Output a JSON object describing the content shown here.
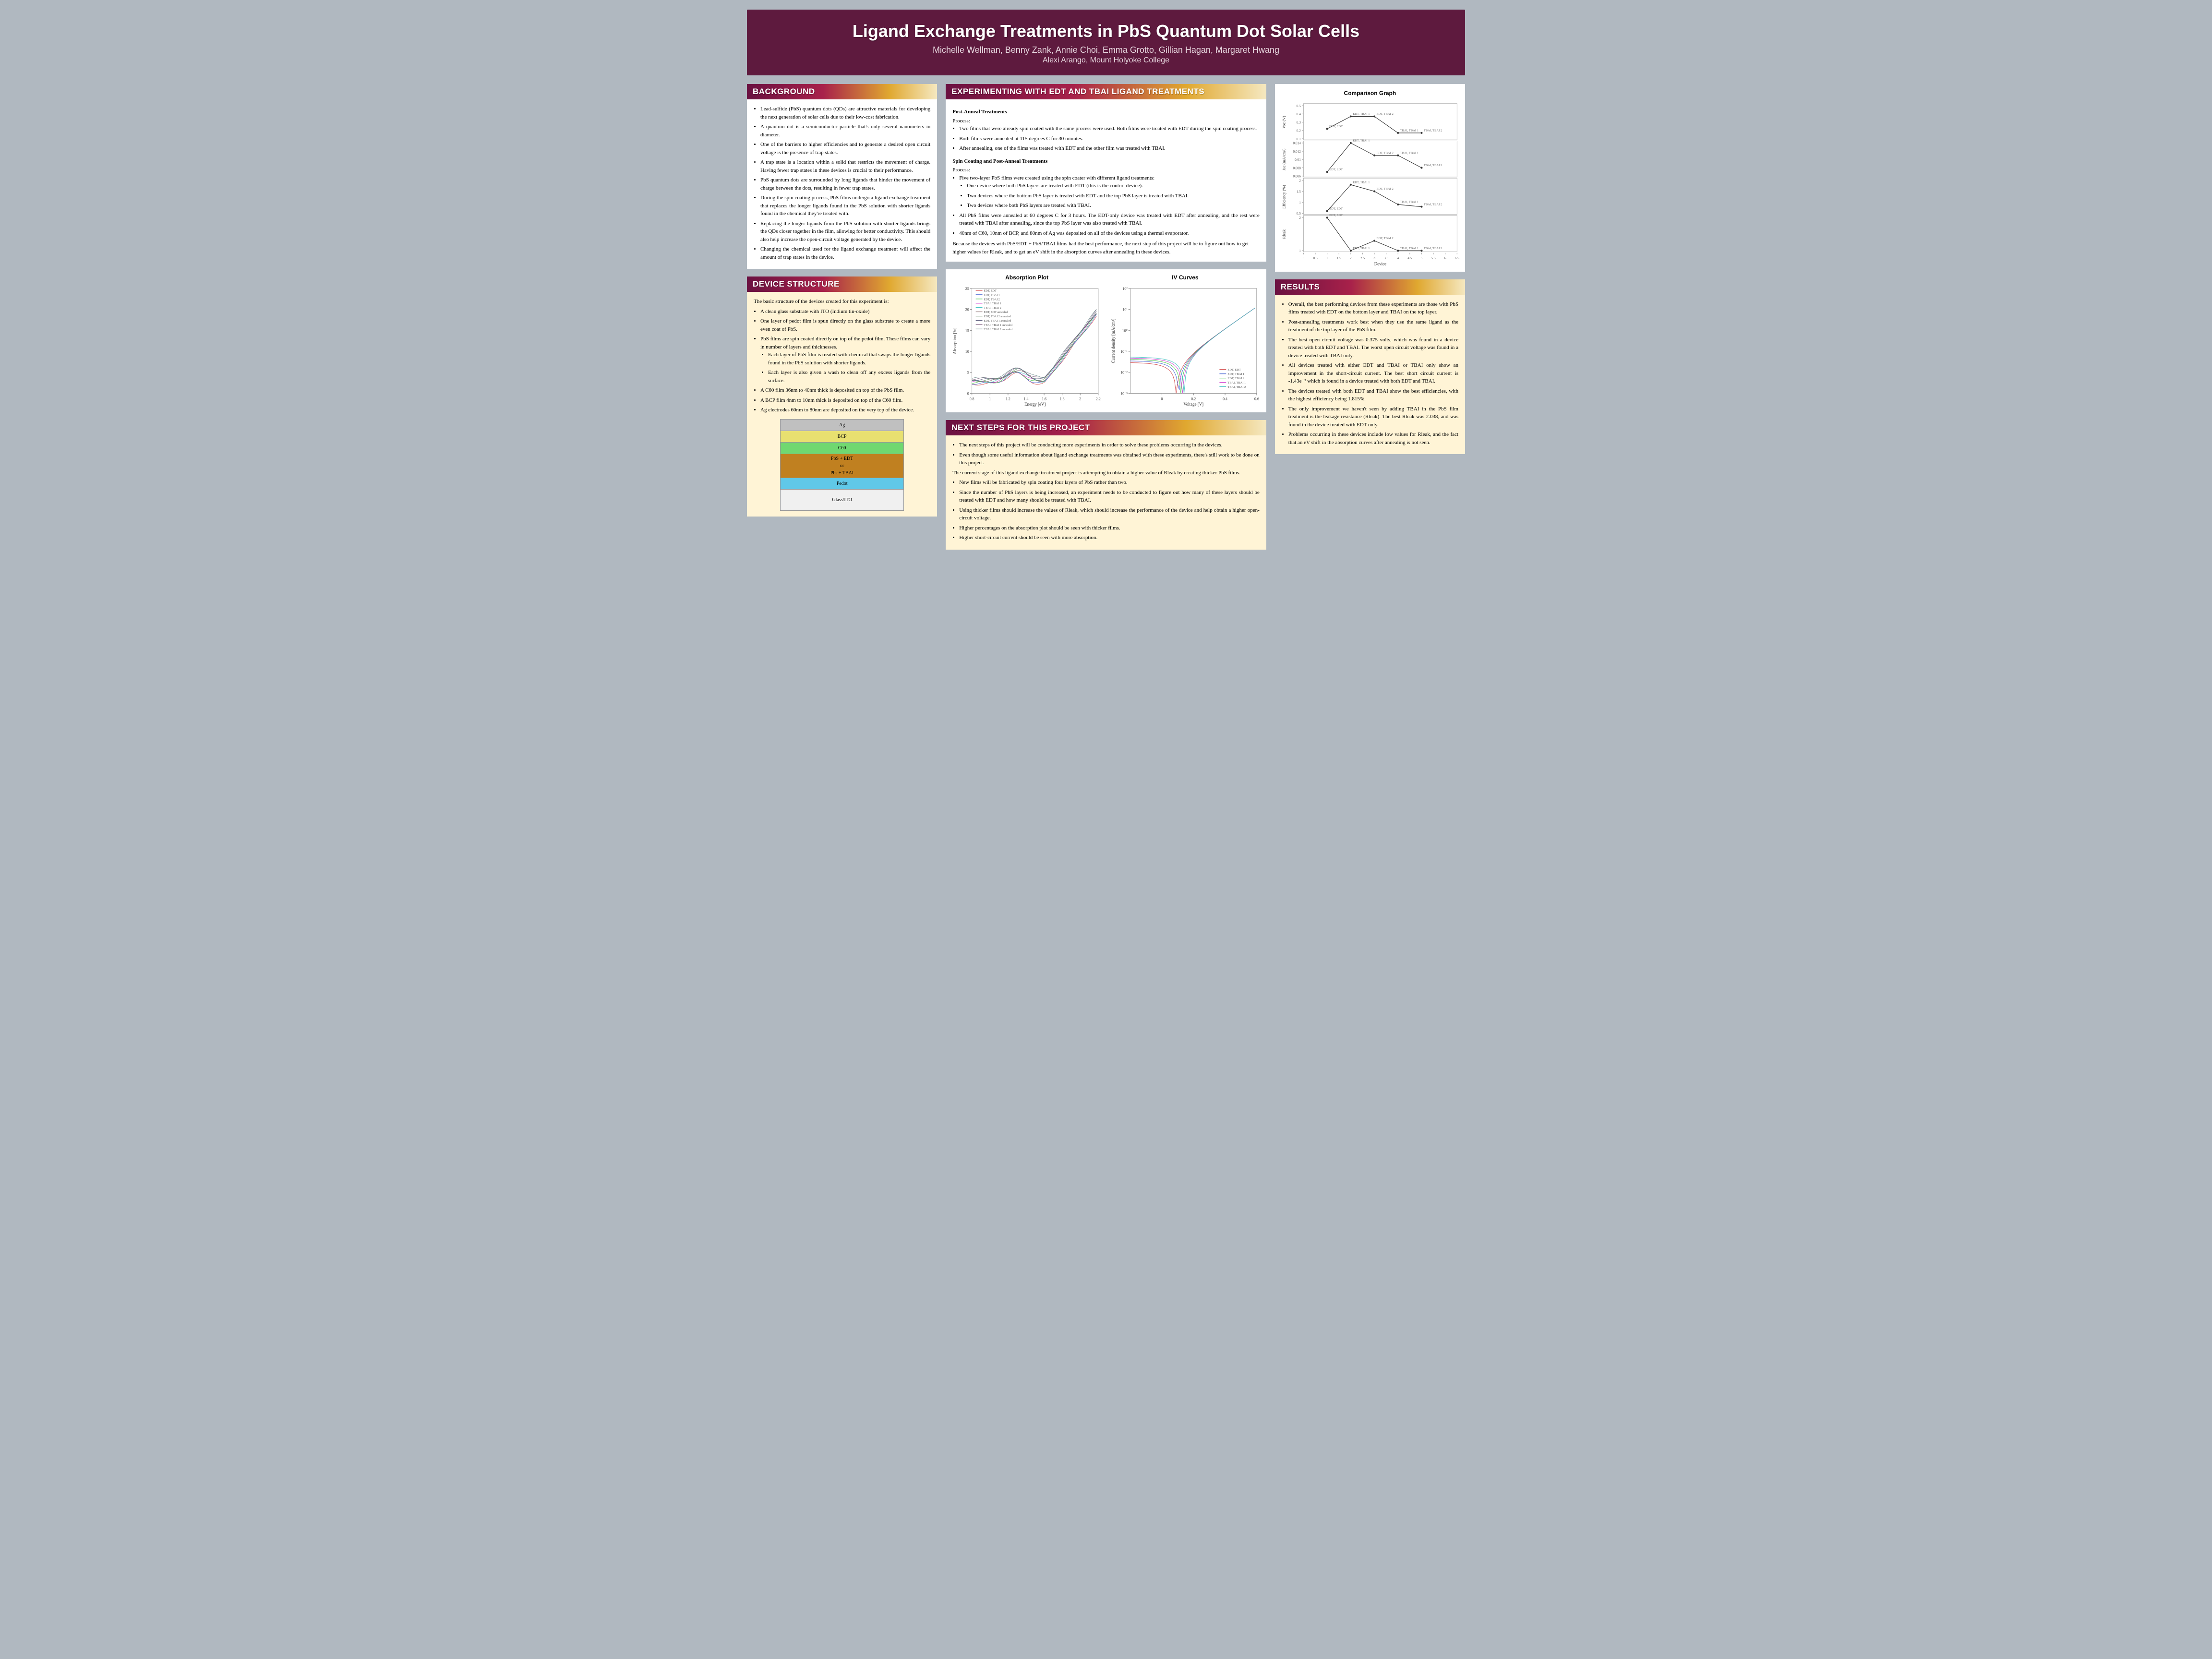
{
  "header": {
    "title": "Ligand Exchange Treatments in PbS Quantum Dot Solar Cells",
    "authors": "Michelle Wellman, Benny Zank, Annie Choi, Emma Grotto, Gillian Hagan, Margaret Hwang",
    "affiliation": "Alexi Arango, Mount Holyoke College"
  },
  "background": {
    "heading": "BACKGROUND",
    "items": [
      "Lead-sulfide (PbS) quantum dots (QDs) are attractive materials for developing the next generation of solar cells due to their low-cost fabrication.",
      "A quantum dot is a semiconductor particle that's only several nanometers in diameter.",
      "One of the barriers to higher efficiencies and to generate a desired open circuit voltage is the presence of trap states.",
      "A trap state is a location within a solid that restricts the movement of charge. Having fewer trap states in these devices is crucial to their performance.",
      "PbS quantum dots are surrounded by long ligands that hinder the movement of charge between the dots, resulting in fewer trap states.",
      "During the spin coating process, PbS films undergo a ligand exchange treatment that replaces the longer ligands found in the PbS solution with shorter ligands found in the chemical they're treated with.",
      "Replacing the longer ligands from the PbS solution with shorter ligands brings the QDs closer together in the film, allowing for better conductivity. This should also help increase the open-circuit voltage generated by the device.",
      "Changing the chemical used for the ligand exchange treatment will affect the amount of trap states in the device."
    ]
  },
  "device_structure": {
    "heading": "DEVICE STRUCTURE",
    "intro": "The basic structure of the devices created for this experiment is:",
    "items": [
      "A clean glass substrate with ITO (Indium tin-oxide)",
      "One layer of pedot film is spun directly on the glass substrate to create a more even coat of PbS.",
      "PbS films are spin coated directly on top of the pedot film. These films can vary in number of layers and thicknesses."
    ],
    "subitems": [
      "Each layer of PbS film is treated with chemical that swaps the longer ligands found in the PbS solution with shorter ligands.",
      "Each layer is also given a wash to clean off any excess ligands from the surface."
    ],
    "items2": [
      "A C60 film 36nm to 40nm thick is deposited on top of the PbS film.",
      "A BCP film 4nm to 10nm thick is deposited on top of the C60 film.",
      "Ag electrodes 60nm to 80nm are deposited on the very top of the device."
    ],
    "layers": [
      {
        "label": "Ag",
        "color": "#c0c0c0"
      },
      {
        "label": "BCP",
        "color": "#e8e070"
      },
      {
        "label": "C60",
        "color": "#70d870"
      },
      {
        "label": "PbS + EDT\nor\nPbs + TBAI",
        "color": "#c08020"
      },
      {
        "label": "Pedot",
        "color": "#60c8e8"
      },
      {
        "label": "Glass/ITO",
        "color": "#f0f0f0"
      }
    ]
  },
  "experimenting": {
    "heading": "EXPERIMENTING WITH EDT AND TBAI LIGAND TREATMENTS",
    "sub1": "Post-Anneal Treatments",
    "proc1_label": "Process:",
    "proc1": [
      "Two films that were already spin coated with the same process were used. Both films were treated with EDT during the spin coating process.",
      "Both films were annealed at 115 degrees C for 30 minutes.",
      "After annealing, one of the films was treated with EDT and the other film was treated with TBAI."
    ],
    "sub2": "Spin Coating and Post-Anneal Treatments",
    "proc2_label": "Process:",
    "proc2": [
      "Five two-layer PbS films were created using the spin coater with different ligand treatments:"
    ],
    "proc2_sub": [
      "One device where both PbS layers are treated with EDT (this is the control device).",
      "Two devices where the bottom PbS layer is treated with EDT and the top PbS layer is treated with TBAI.",
      "Two devices where both PbS layers are treated with TBAI."
    ],
    "proc2_after": [
      "All PbS films were annealed at 60 degrees C for 3 hours. The EDT-only device was treated with EDT after annealing, and the rest were treated with TBAI after annealing, since the top PbS layer was also treated with TBAI.",
      "40nm of C60, 10nm of BCP, and 80nm of Ag was deposited on all of the devices using a thermal evaporator."
    ],
    "conclusion": "Because the devices with PbS/EDT + PbS/TBAI films had the best performance, the next step of this project will be to figure out how to get higher values for Rleak, and to get an eV shift in the absorption curves after annealing in these devices."
  },
  "absorption_chart": {
    "title": "Absorption Plot",
    "xlabel": "Energy [eV]",
    "ylabel": "Absorption [%]",
    "xlim": [
      0.8,
      2.2
    ],
    "ylim": [
      0,
      25
    ],
    "xticks": [
      0.8,
      1.0,
      1.2,
      1.4,
      1.6,
      1.8,
      2.0,
      2.2
    ],
    "yticks": [
      0,
      5,
      10,
      15,
      20,
      25
    ],
    "legend": [
      "EDT, EDT",
      "EDT, TBAI 1",
      "EDT, TBAI 2",
      "TBAI, TBAI 1",
      "TBAI, TBAI 2",
      "EDT, EDT annealed",
      "EDT, TBAI 2 annealed",
      "EDT, TBAI 1 annealed",
      "TBAI, TBAI 1 annealed",
      "TBAI, TBAI 2 annealed"
    ],
    "colors": [
      "#d04040",
      "#4060d0",
      "#40c040",
      "#d040d0",
      "#40c0c0",
      "#806060",
      "#608060",
      "#606080",
      "#806080",
      "#608080"
    ]
  },
  "iv_chart": {
    "title": "IV Curves",
    "xlabel": "Voltage [V]",
    "ylabel": "Current density [mA/cm²]",
    "xlim": [
      -0.2,
      0.6
    ],
    "xticks": [
      0,
      0.2,
      0.4,
      0.6
    ],
    "ylog_ticks": [
      "10⁻³",
      "10⁻²",
      "10⁻¹",
      "10⁰",
      "10¹",
      "10²"
    ],
    "legend": [
      "EDT, EDT",
      "EDT, TBAI 1",
      "EDT, TBAI 2",
      "TBAI, TBAI 1",
      "TBAI, TBAI 2"
    ],
    "colors": [
      "#d04040",
      "#4060d0",
      "#40c040",
      "#d040d0",
      "#40c0c0"
    ]
  },
  "comparison_chart": {
    "title": "Comparison Graph",
    "xlabel": "Device",
    "xlim": [
      0,
      6.5
    ],
    "xticks": [
      0,
      0.5,
      1.0,
      1.5,
      2.0,
      2.5,
      3.0,
      3.5,
      4.0,
      4.5,
      5.0,
      5.5,
      6.0,
      6.5
    ],
    "panels": [
      {
        "ylabel": "Voc (V)",
        "yticks": [
          0.1,
          0.2,
          0.3,
          0.4,
          0.5
        ],
        "values": [
          [
            1,
            0.22
          ],
          [
            2,
            0.37
          ],
          [
            3,
            0.37
          ],
          [
            4,
            0.17
          ],
          [
            5,
            0.17
          ]
        ],
        "labels": [
          "EDT, EDT",
          "EDT, TBAI 1",
          "EDT, TBAI 2",
          "TBAI, TBAI 1",
          "TBAI, TBAI 2"
        ]
      },
      {
        "ylabel": "Jsc (mA/cm²)",
        "yticks": [
          0.006,
          0.008,
          0.01,
          0.012,
          0.014
        ],
        "values": [
          [
            1,
            0.007
          ],
          [
            2,
            0.014
          ],
          [
            3,
            0.011
          ],
          [
            4,
            0.011
          ],
          [
            5,
            0.008
          ]
        ]
      },
      {
        "ylabel": "Efficiency (%)",
        "yticks": [
          0.5,
          1.0,
          1.5,
          2.0
        ],
        "values": [
          [
            1,
            0.6
          ],
          [
            2,
            1.8
          ],
          [
            3,
            1.5
          ],
          [
            4,
            0.9
          ],
          [
            5,
            0.8
          ]
        ]
      },
      {
        "ylabel": "Rleak",
        "yticks": [
          1,
          2
        ],
        "values": [
          [
            1,
            2.0
          ],
          [
            2,
            1.0
          ],
          [
            3,
            1.3
          ],
          [
            4,
            1.0
          ],
          [
            5,
            1.0
          ]
        ]
      }
    ]
  },
  "results": {
    "heading": "RESULTS",
    "items": [
      "Overall, the best performing devices from these experiments are those with PbS films treated with EDT on the bottom layer and TBAI on the top layer.",
      "Post-annealing treatments work best when they use the same ligand as the treatment of the top layer of the PbS film.",
      "The best open circuit voltage was 0.375 volts, which was found in a device treated with both EDT and TBAI. The worst open circuit voltage was found in a device treated with TBAI only.",
      "All devices treated with either EDT and TBAI or TBAI only show an improvement in the short-circuit current. The best short circuit current is -1.43e⁻² which is found in a device treated with both EDT and TBAI.",
      "The devices treated with both EDT and TBAI show the best efficiencies, with the highest efficiency being 1.815%.",
      "The only improvement we haven't seen by adding TBAI in the PbS film treatment is the leakage resistance (Rleak). The best Rleak was 2.038, and was found in the device treated with EDT only.",
      "Problems occurring in these devices include low values for Rleak, and the fact that an eV shift in the absorption curves after annealing is not seen."
    ]
  },
  "next_steps": {
    "heading": "NEXT STEPS FOR THIS PROJECT",
    "items": [
      "The next steps of this project will be conducting more experiments in order to solve these problems occurring in the devices.",
      "Even though some useful information about ligand exchange treatments was obtained with these experiments, there's still work to be done on this project."
    ],
    "mid": "The current stage of this ligand exchange treatment project is attempting to obtain a higher value of Rleak by creating thicker PbS films.",
    "items2": [
      "New films will be fabricated by spin coating four layers of PbS rather than two.",
      "Since the number of PbS layers is being increased, an experiment needs to be conducted to figure out how many of these layers should be treated with EDT and how many should be treated with TBAI.",
      "Using thicker films should increase the values of Rleak, which should increase the performance of the device and help obtain a higher open-circuit voltage.",
      "Higher percentages on the absorption plot should be seen with thicker films.",
      "Higher short-circuit current should be seen with more absorption."
    ]
  }
}
